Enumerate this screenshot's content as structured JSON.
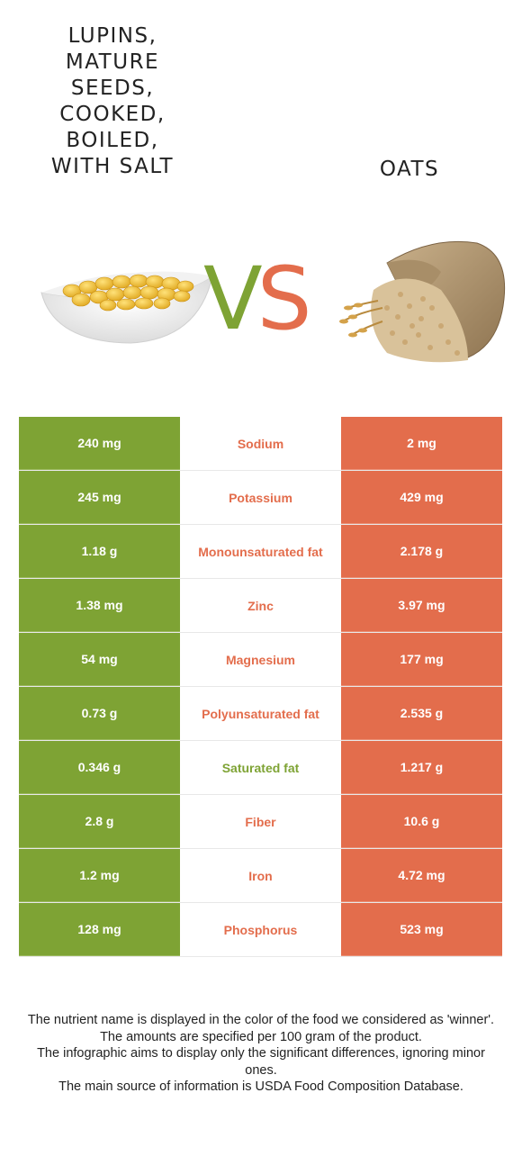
{
  "header": {
    "left_title": "LUPINS,\nMATURE\nSEEDS,\nCOOKED,\nBOILED,\nWITH SALT",
    "right_title": "OATS",
    "vs_v": "V",
    "vs_s": "S"
  },
  "colors": {
    "lupins": "#7ea334",
    "oats": "#e36d4c"
  },
  "rows": [
    {
      "left": "240 mg",
      "nutrient": "Sodium",
      "right": "2 mg",
      "winner": "oats"
    },
    {
      "left": "245 mg",
      "nutrient": "Potassium",
      "right": "429 mg",
      "winner": "oats"
    },
    {
      "left": "1.18 g",
      "nutrient": "Monounsaturated fat",
      "right": "2.178 g",
      "winner": "oats"
    },
    {
      "left": "1.38 mg",
      "nutrient": "Zinc",
      "right": "3.97 mg",
      "winner": "oats"
    },
    {
      "left": "54 mg",
      "nutrient": "Magnesium",
      "right": "177 mg",
      "winner": "oats"
    },
    {
      "left": "0.73 g",
      "nutrient": "Polyunsaturated fat",
      "right": "2.535 g",
      "winner": "oats"
    },
    {
      "left": "0.346 g",
      "nutrient": "Saturated fat",
      "right": "1.217 g",
      "winner": "lupins"
    },
    {
      "left": "2.8 g",
      "nutrient": "Fiber",
      "right": "10.6 g",
      "winner": "oats"
    },
    {
      "left": "1.2 mg",
      "nutrient": "Iron",
      "right": "4.72 mg",
      "winner": "oats"
    },
    {
      "left": "128 mg",
      "nutrient": "Phosphorus",
      "right": "523 mg",
      "winner": "oats"
    }
  ],
  "footer": {
    "line1": "The nutrient name is displayed in the color of the food we considered as 'winner'.",
    "line2": "The amounts are specified per 100 gram of the product.",
    "line3": "The infographic aims to display only the significant differences, ignoring minor ones.",
    "line4": "The main source of information is USDA Food Composition Database."
  }
}
